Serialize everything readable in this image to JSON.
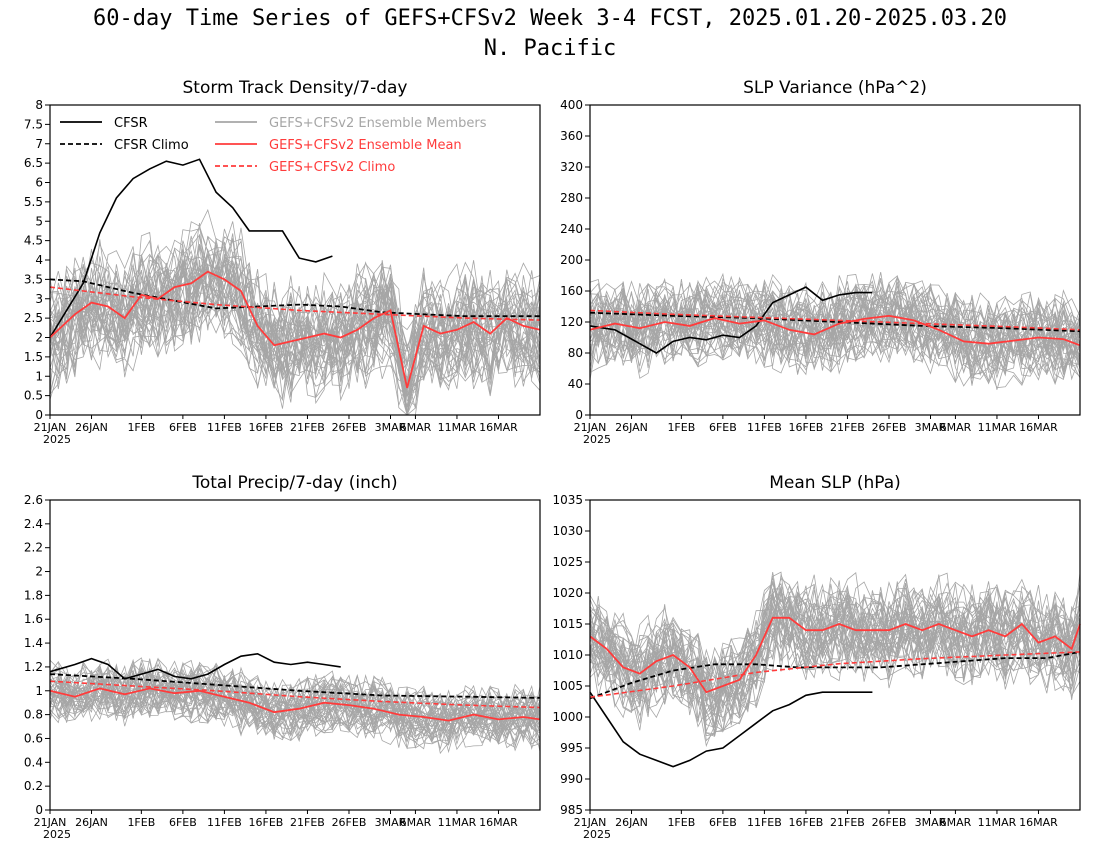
{
  "figure": {
    "title_line1": "60-day Time Series of GEFS+CFSv2 Week 3-4 FCST, 2025.01.20-2025.03.20",
    "title_line2": "N. Pacific"
  },
  "colors": {
    "cfsr": "#000000",
    "ensemble_members": "#a6a6a6",
    "ensemble_mean": "#ff3b3b",
    "gefs_climo": "#ff3b3b"
  },
  "x_axis": {
    "tick_labels": [
      "21JAN",
      "26JAN",
      "1FEB",
      "6FEB",
      "11FEB",
      "16FEB",
      "21FEB",
      "26FEB",
      "3MAR",
      "6MAR",
      "11MAR",
      "16MAR"
    ],
    "year_label": "2025",
    "n_days": 60
  },
  "legend": {
    "cfsr": "CFSR",
    "cfsr_climo": "CFSR Climo",
    "members": "GEFS+CFSv2 Ensemble Members",
    "mean": "GEFS+CFSv2 Ensemble Mean",
    "gefs_climo": "GEFS+CFSv2 Climo"
  },
  "chart_data": [
    {
      "type": "line",
      "title": "Storm Track Density/7-day",
      "ylim": [
        0,
        8
      ],
      "y_ticks": [
        "0",
        "0.5",
        "1",
        "1.5",
        "2",
        "2.5",
        "3",
        "3.5",
        "4",
        "4.5",
        "5",
        "5.5",
        "6",
        "6.5",
        "7",
        "7.5",
        "8"
      ],
      "series": [
        {
          "name": "CFSR",
          "x": [
            0,
            2,
            4,
            6,
            8,
            10,
            12,
            14,
            16,
            18,
            20,
            22,
            24,
            26,
            28,
            30,
            32,
            34
          ],
          "values": [
            2.0,
            2.7,
            3.4,
            4.7,
            5.6,
            6.1,
            6.35,
            6.55,
            6.45,
            6.6,
            5.75,
            5.35,
            4.75,
            4.75,
            4.75,
            4.05,
            3.95,
            4.1
          ]
        },
        {
          "name": "CFSR Climo",
          "x": [
            0,
            4,
            10,
            15,
            20,
            25,
            30,
            35,
            40,
            45,
            50,
            55,
            59
          ],
          "values": [
            3.5,
            3.45,
            3.15,
            2.95,
            2.75,
            2.8,
            2.85,
            2.8,
            2.65,
            2.6,
            2.55,
            2.55,
            2.55
          ]
        },
        {
          "name": "GEFS+CFSv2 Ensemble Mean",
          "x": [
            0,
            3,
            5,
            7,
            9,
            11,
            13,
            15,
            17,
            19,
            21,
            23,
            25,
            27,
            29,
            31,
            33,
            35,
            37,
            39,
            41,
            43,
            45,
            47,
            49,
            51,
            53,
            55,
            57,
            59
          ],
          "values": [
            2.0,
            2.6,
            2.9,
            2.8,
            2.5,
            3.1,
            3.0,
            3.3,
            3.4,
            3.7,
            3.5,
            3.2,
            2.3,
            1.8,
            1.9,
            2.0,
            2.1,
            2.0,
            2.2,
            2.5,
            2.7,
            0.7,
            2.3,
            2.1,
            2.2,
            2.4,
            2.1,
            2.5,
            2.3,
            2.2
          ]
        },
        {
          "name": "GEFS+CFSv2 Climo",
          "x": [
            0,
            10,
            20,
            30,
            40,
            50,
            59
          ],
          "values": [
            3.3,
            3.05,
            2.85,
            2.7,
            2.6,
            2.5,
            2.45
          ]
        }
      ],
      "members": {
        "count": 40,
        "mean_key": "GEFS+CFSv2 Ensemble Mean",
        "spread": 1.5
      }
    },
    {
      "type": "line",
      "title": "SLP Variance (hPa^2)",
      "ylim": [
        0,
        400
      ],
      "y_ticks": [
        "0",
        "40",
        "80",
        "120",
        "160",
        "200",
        "240",
        "280",
        "320",
        "360",
        "400"
      ],
      "series": [
        {
          "name": "CFSR",
          "x": [
            0,
            3,
            6,
            8,
            10,
            12,
            14,
            16,
            18,
            20,
            22,
            24,
            26,
            28,
            30,
            32,
            34
          ],
          "values": [
            115,
            110,
            92,
            80,
            95,
            100,
            97,
            103,
            100,
            115,
            145,
            155,
            165,
            148,
            155,
            158,
            158
          ]
        },
        {
          "name": "CFSR Climo",
          "x": [
            0,
            10,
            20,
            30,
            40,
            50,
            59
          ],
          "values": [
            132,
            128,
            125,
            120,
            115,
            112,
            108
          ]
        },
        {
          "name": "GEFS+CFSv2 Ensemble Mean",
          "x": [
            0,
            3,
            6,
            9,
            12,
            15,
            18,
            21,
            24,
            27,
            30,
            33,
            36,
            39,
            42,
            45,
            48,
            51,
            54,
            57,
            59
          ],
          "values": [
            110,
            118,
            112,
            120,
            115,
            125,
            118,
            122,
            110,
            104,
            118,
            124,
            128,
            122,
            110,
            95,
            92,
            96,
            100,
            98,
            90
          ]
        },
        {
          "name": "GEFS+CFSv2 Climo",
          "x": [
            0,
            10,
            20,
            30,
            40,
            50,
            59
          ],
          "values": [
            135,
            130,
            126,
            122,
            118,
            114,
            110
          ]
        }
      ],
      "members": {
        "count": 40,
        "mean_key": "GEFS+CFSv2 Ensemble Mean",
        "spread": 55
      }
    },
    {
      "type": "line",
      "title": "Total Precip/7-day (inch)",
      "ylim": [
        0,
        2.6
      ],
      "y_ticks": [
        "0",
        "0.2",
        "0.4",
        "0.6",
        "0.8",
        "1",
        "1.2",
        "1.4",
        "1.6",
        "1.8",
        "2",
        "2.2",
        "2.4",
        "2.6"
      ],
      "series": [
        {
          "name": "CFSR",
          "x": [
            0,
            3,
            5,
            7,
            9,
            11,
            13,
            15,
            17,
            19,
            21,
            23,
            25,
            27,
            29,
            31,
            33,
            35
          ],
          "values": [
            1.16,
            1.22,
            1.27,
            1.22,
            1.1,
            1.14,
            1.18,
            1.12,
            1.1,
            1.14,
            1.22,
            1.29,
            1.31,
            1.24,
            1.22,
            1.24,
            1.22,
            1.2
          ]
        },
        {
          "name": "CFSR Climo",
          "x": [
            0,
            10,
            20,
            30,
            40,
            50,
            59
          ],
          "values": [
            1.14,
            1.1,
            1.05,
            1.0,
            0.96,
            0.95,
            0.94
          ]
        },
        {
          "name": "GEFS+CFSv2 Ensemble Mean",
          "x": [
            0,
            3,
            6,
            9,
            12,
            15,
            18,
            21,
            24,
            27,
            30,
            33,
            36,
            39,
            42,
            45,
            48,
            51,
            54,
            57,
            59
          ],
          "values": [
            1.0,
            0.95,
            1.02,
            0.97,
            1.02,
            0.98,
            1.0,
            0.95,
            0.9,
            0.82,
            0.85,
            0.9,
            0.88,
            0.85,
            0.8,
            0.78,
            0.75,
            0.8,
            0.76,
            0.78,
            0.76
          ]
        },
        {
          "name": "GEFS+CFSv2 Climo",
          "x": [
            0,
            10,
            20,
            30,
            40,
            50,
            59
          ],
          "values": [
            1.08,
            1.04,
            1.0,
            0.95,
            0.91,
            0.88,
            0.86
          ]
        }
      ],
      "members": {
        "count": 40,
        "mean_key": "GEFS+CFSv2 Ensemble Mean",
        "spread": 0.25
      }
    },
    {
      "type": "line",
      "title": "Mean SLP (hPa)",
      "ylim": [
        985,
        1035
      ],
      "y_ticks": [
        "985",
        "990",
        "995",
        "1000",
        "1005",
        "1010",
        "1015",
        "1020",
        "1025",
        "1030",
        "1035"
      ],
      "series": [
        {
          "name": "CFSR",
          "x": [
            0,
            2,
            4,
            6,
            8,
            10,
            12,
            14,
            16,
            18,
            20,
            22,
            24,
            26,
            28,
            30,
            32,
            34
          ],
          "values": [
            1004,
            1000,
            996,
            994,
            993,
            992,
            993,
            994.5,
            995,
            997,
            999,
            1001,
            1002,
            1003.5,
            1004,
            1004,
            1004,
            1004
          ]
        },
        {
          "name": "CFSR Climo",
          "x": [
            0,
            5,
            10,
            15,
            20,
            25,
            30,
            35,
            40,
            45,
            50,
            55,
            59
          ],
          "values": [
            1003,
            1005.5,
            1007.5,
            1008.5,
            1008.5,
            1008,
            1008,
            1008,
            1008.5,
            1009,
            1009.5,
            1009.5,
            1010.5
          ]
        },
        {
          "name": "GEFS+CFSv2 Ensemble Mean",
          "x": [
            0,
            2,
            4,
            6,
            8,
            10,
            12,
            14,
            16,
            18,
            20,
            22,
            24,
            26,
            28,
            30,
            32,
            34,
            36,
            38,
            40,
            42,
            44,
            46,
            48,
            50,
            52,
            54,
            56,
            58,
            59
          ],
          "values": [
            1013,
            1011,
            1008,
            1007,
            1009,
            1010,
            1008,
            1004,
            1005,
            1006,
            1010,
            1016,
            1016,
            1014,
            1014,
            1015,
            1014,
            1014,
            1014,
            1015,
            1014,
            1015,
            1014,
            1013,
            1014,
            1013,
            1015,
            1012,
            1013,
            1011,
            1015
          ]
        },
        {
          "name": "GEFS+CFSv2 Climo",
          "x": [
            0,
            10,
            20,
            30,
            40,
            50,
            59
          ],
          "values": [
            1003.2,
            1005,
            1007.2,
            1008.6,
            1009.4,
            1010,
            1010.5
          ]
        }
      ],
      "members": {
        "count": 40,
        "mean_key": "GEFS+CFSv2 Ensemble Mean",
        "spread": 8
      }
    }
  ]
}
